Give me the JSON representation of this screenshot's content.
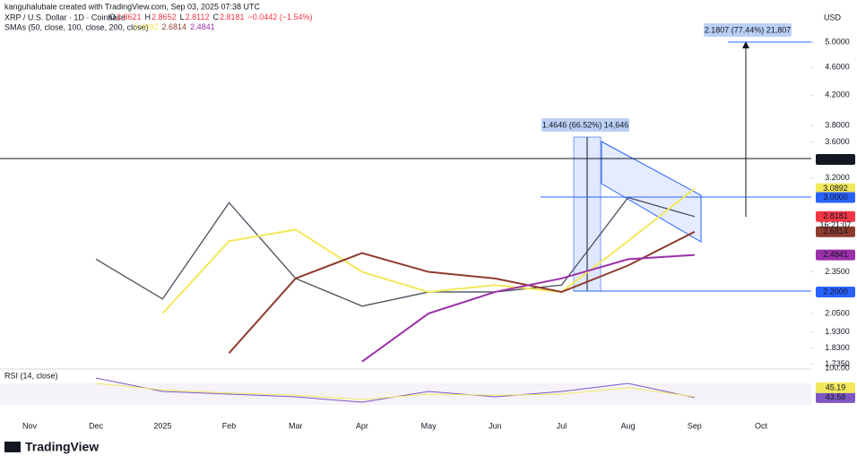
{
  "header": {
    "credit": "kanguhalubale created with TradingView.com, Sep 03, 2025 07:38 UTC",
    "ohlc": [
      {
        "key": "O",
        "value": "2.8621"
      },
      {
        "key": "H",
        "value": "2.8652"
      },
      {
        "key": "L",
        "value": "2.8112"
      },
      {
        "key": "C",
        "value": "2.8181"
      }
    ],
    "change": "−0.0442 (−1.54%)",
    "sma_label": "SMAs (50, close, 100, close, 200, close)",
    "countdown": "16:21:07",
    "currency": "USD",
    "brand": "TradingView"
  },
  "chart_data": {
    "type": "line",
    "log_scale": true,
    "categories": [
      "Nov",
      "Dec",
      "2025",
      "Feb",
      "Mar",
      "Apr",
      "May",
      "Jun",
      "Jul",
      "Aug",
      "Sep",
      "Oct"
    ],
    "series": [
      {
        "name": "XRP / U.S. Dollar · 1D · Coinbase",
        "color": "#4a4f5c",
        "values": [
          null,
          2.45,
          2.15,
          2.95,
          2.3,
          2.1,
          2.2,
          2.2,
          2.25,
          3.0,
          2.8181,
          null
        ]
      },
      {
        "color": "#f2e85c",
        "values": [
          null,
          null,
          2.05,
          2.6,
          2.7,
          2.35,
          2.2,
          2.25,
          2.2,
          2.6,
          3.0892,
          null
        ],
        "value_label": "3.0892"
      },
      {
        "color": "#8e3b2f",
        "values": [
          null,
          null,
          null,
          1.8,
          2.3,
          2.5,
          2.35,
          2.3,
          2.2,
          2.4,
          2.6814,
          null
        ],
        "value_label": "2.6814"
      },
      {
        "color": "#9b30a8",
        "values": [
          null,
          null,
          null,
          null,
          null,
          1.75,
          2.05,
          2.2,
          2.3,
          2.45,
          2.4841,
          null
        ],
        "value_label": "2.4841"
      }
    ],
    "ylim": [
      1.718,
      5.74
    ],
    "yticks": [
      {
        "value": 5,
        "label": "5.0000"
      },
      {
        "value": 4.6,
        "label": "4.6000"
      },
      {
        "value": 4.2,
        "label": "4.2000"
      },
      {
        "value": 3.8,
        "label": "3.8000"
      },
      {
        "value": 3.6,
        "label": "3.6000"
      },
      {
        "value": 3.2,
        "label": "3.2000"
      },
      {
        "value": 2.35,
        "label": "2.3500"
      },
      {
        "value": 2.05,
        "label": "2.0500"
      },
      {
        "value": 1.93,
        "label": "1.9300"
      },
      {
        "value": 1.83,
        "label": "1.8300"
      },
      {
        "value": 1.735,
        "label": "1.7350"
      }
    ],
    "price_tags": [
      {
        "value": 3.4002,
        "color": "#131722"
      },
      {
        "value": 3.0892,
        "color": "#f2e85c"
      },
      {
        "value": 3,
        "label": "3.0000",
        "color": "#2962ff"
      },
      {
        "value": 2.8181,
        "color": "#f23645"
      },
      {
        "value": 2.6814,
        "color": "#8e3b2f"
      },
      {
        "value": 2.4841,
        "color": "#9b30a8"
      },
      {
        "value": 2.2,
        "label": "2.2000",
        "color": "#2962ff"
      }
    ],
    "annotations": [
      "1.4646 (66.52%) 14,646",
      "2.1807 (77.44%) 21,807"
    ],
    "rsi": {
      "title": "RSI (14, close)",
      "ylim": [
        0,
        100
      ],
      "top_label": {
        "value": 100,
        "label": "100.00"
      },
      "series": [
        {
          "color": "#7e57c2",
          "values": [
            null,
            80,
            55,
            50,
            45,
            35,
            55,
            45,
            55,
            70,
            43.58,
            null
          ],
          "value_label": "43.58"
        },
        {
          "color": "#f2e85c",
          "values": [
            null,
            70,
            58,
            52,
            48,
            40,
            50,
            48,
            50,
            62,
            45.19,
            null
          ],
          "value_label": "45.19"
        }
      ]
    }
  }
}
